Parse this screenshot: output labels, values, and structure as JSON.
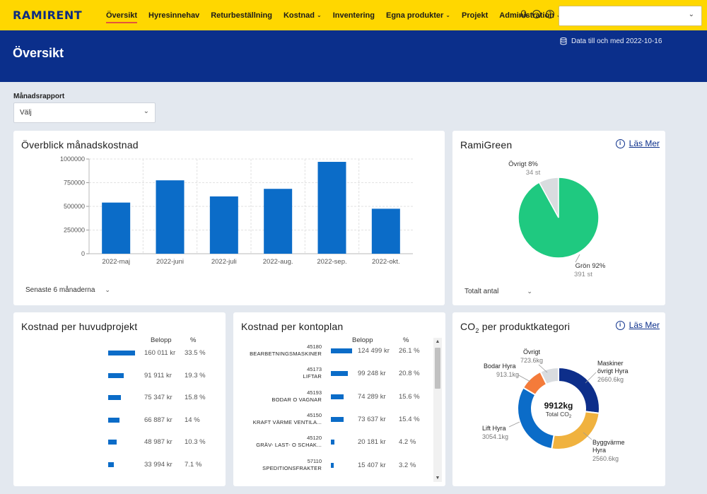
{
  "app": {
    "logo": "RAMIRENT"
  },
  "nav": {
    "items": [
      {
        "label": "Översikt",
        "active": true,
        "dropdown": false
      },
      {
        "label": "Hyresinnehav",
        "active": false,
        "dropdown": false
      },
      {
        "label": "Returbeställning",
        "active": false,
        "dropdown": false
      },
      {
        "label": "Kostnad",
        "active": false,
        "dropdown": true
      },
      {
        "label": "Inventering",
        "active": false,
        "dropdown": false
      },
      {
        "label": "Egna produkter",
        "active": false,
        "dropdown": true
      },
      {
        "label": "Projekt",
        "active": false,
        "dropdown": false
      },
      {
        "label": "Administration",
        "active": false,
        "dropdown": true
      }
    ],
    "icons": [
      "bell-icon",
      "user-circle-icon",
      "help-circle-icon"
    ],
    "top_select_value": ""
  },
  "header": {
    "title": "Översikt",
    "data_date": "Data till och med 2022-10-16"
  },
  "filter": {
    "label": "Månadsrapport",
    "value": "Välj"
  },
  "monthly_cost": {
    "title": "Överblick månadskostnad",
    "period_select": "Senaste 6 månaderna",
    "chart_data": {
      "type": "bar",
      "categories": [
        "2022-maj",
        "2022-juni",
        "2022-juli",
        "2022-aug.",
        "2022-sep.",
        "2022-okt."
      ],
      "values": [
        540000,
        775000,
        605000,
        685000,
        970000,
        475000
      ],
      "yticks": [
        "0",
        "250000",
        "500000",
        "750000",
        "1000000"
      ],
      "ylim": [
        0,
        1000000
      ],
      "color": "#0b6cc8",
      "grid": true
    }
  },
  "ramigreen": {
    "title": "RamiGreen",
    "las_mer": "Läs Mer",
    "count_select": "Totalt antal",
    "slices": [
      {
        "label": "Övrigt 8%",
        "sub": "34 st",
        "value": 8,
        "color": "#d9dcdf"
      },
      {
        "label": "Grön 92%",
        "sub": "391 st",
        "value": 92,
        "color": "#1fc980"
      }
    ]
  },
  "project_cost": {
    "title": "Kostnad per huvudprojekt",
    "col_belopp": "Belopp",
    "col_pct": "%",
    "rows": [
      {
        "amount": "160 011 kr",
        "pct": "33.5 %",
        "share": 0.335
      },
      {
        "amount": "91 911 kr",
        "pct": "19.3 %",
        "share": 0.193
      },
      {
        "amount": "75 347 kr",
        "pct": "15.8 %",
        "share": 0.158
      },
      {
        "amount": "66 887 kr",
        "pct": "14 %",
        "share": 0.14
      },
      {
        "amount": "48 987 kr",
        "pct": "10.3 %",
        "share": 0.103
      },
      {
        "amount": "33 994 kr",
        "pct": "7.1 %",
        "share": 0.071
      }
    ]
  },
  "account_cost": {
    "title": "Kostnad per kontoplan",
    "col_belopp": "Belopp",
    "col_pct": "%",
    "rows": [
      {
        "code": "45180",
        "name": "BEARBETNINGSMASKINER",
        "amount": "124 499 kr",
        "pct": "26.1 %",
        "share": 0.261
      },
      {
        "code": "45173",
        "name": "LIFTAR",
        "amount": "99 248 kr",
        "pct": "20.8 %",
        "share": 0.208
      },
      {
        "code": "45193",
        "name": "BODAR O VAGNAR",
        "amount": "74 289 kr",
        "pct": "15.6 %",
        "share": 0.156
      },
      {
        "code": "45150",
        "name": "KRAFT VÄRME VENTILA...",
        "amount": "73 637 kr",
        "pct": "15.4 %",
        "share": 0.154
      },
      {
        "code": "45120",
        "name": "GRÄV- LAST- O SCHAK...",
        "amount": "20 181 kr",
        "pct": "4.2 %",
        "share": 0.042
      },
      {
        "code": "57110",
        "name": "SPEDITIONSFRAKTER",
        "amount": "15 407 kr",
        "pct": "3.2 %",
        "share": 0.032
      }
    ]
  },
  "co2": {
    "title_main": "CO",
    "title_sub": "2",
    "title_rest": " per produktkategori",
    "las_mer": "Läs Mer",
    "total_value": "9912kg",
    "total_label_main": "Total CO",
    "total_label_sub": "2",
    "segments": [
      {
        "name": "Maskiner övrigt Hyra",
        "value_label": "2660.6kg",
        "value": 2660.6,
        "color": "#0d2e8a"
      },
      {
        "name": "Byggvärme Hyra",
        "value_label": "2560.6kg",
        "value": 2560.6,
        "color": "#f0b23f"
      },
      {
        "name": "Lift Hyra",
        "value_label": "3054.1kg",
        "value": 3054.1,
        "color": "#0b6cc8"
      },
      {
        "name": "Bodar Hyra",
        "value_label": "913.1kg",
        "value": 913.1,
        "color": "#f47b3a"
      },
      {
        "name": "Övrigt",
        "value_label": "723.6kg",
        "value": 723.6,
        "color": "#d9dcdf"
      }
    ],
    "labels": {
      "maskiner_l1": "Maskiner",
      "maskiner_l2": "övrigt Hyra",
      "maskiner_v": "2660.6kg",
      "bygg_l1": "Byggvärme",
      "bygg_l2": "Hyra",
      "bygg_v": "2560.6kg",
      "lift_l1": "Lift Hyra",
      "lift_v": "3054.1kg",
      "bodar_l1": "Bodar Hyra",
      "bodar_v": "913.1kg",
      "ovrigt_l1": "Övrigt",
      "ovrigt_v": "723.6kg"
    }
  }
}
